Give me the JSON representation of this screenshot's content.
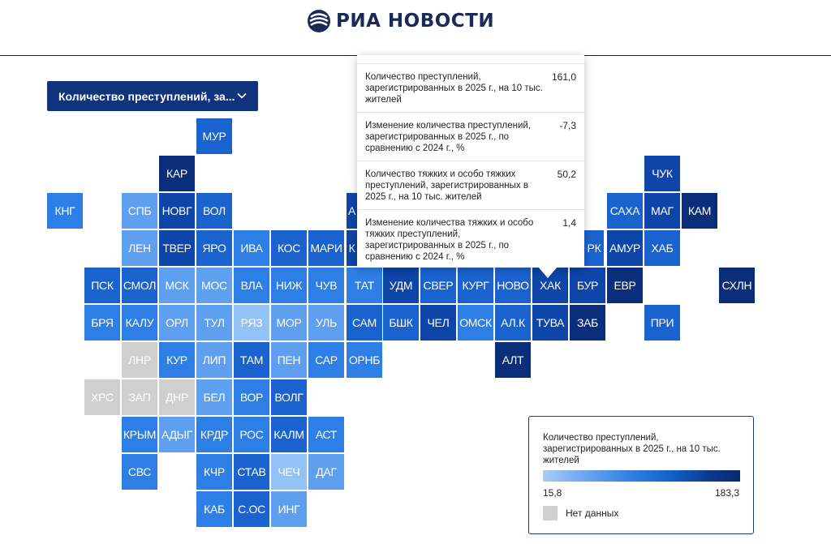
{
  "header": {
    "brand": "РИА НОВОСТИ",
    "logo": "ria-logo-icon"
  },
  "selector": {
    "label": "Количество преступлений, за...",
    "icon": "chevron-down-icon"
  },
  "tooltip": {
    "rows": [
      {
        "label": "Количество преступлений, зарегистрированных в 2025 г., на 10 тыс. жителей",
        "value": "161,0"
      },
      {
        "label": "Изменение количества преступлений, зарегистрированных в 2025 г., по сравнению с 2024 г., %",
        "value": "-7,3"
      },
      {
        "label": "Количество тяжких и особо тяжких преступлений, зарегистрированных в 2025 г., на 10 тыс. жителей",
        "value": "50,2"
      },
      {
        "label": "Изменение количества тяжких и особо тяжких преступлений, зарегистрированных в 2025 г., по сравнению с 2024 г., %",
        "value": "1,4"
      }
    ]
  },
  "legend": {
    "title": "Количество преступлений, зарегистрированных в 2025 г., на 10 тыс. жителей",
    "min": "15,8",
    "max": "183,3",
    "no_data": "Нет данных",
    "no_data_color": "#cfcfcf"
  },
  "colors": {
    "navy": "#0a2e7a",
    "dark": "#0e45a8",
    "mid": "#1a63cf",
    "bright": "#2d7fe6",
    "light": "#5e9ff0",
    "pale": "#93c2f7",
    "nodata": "#cfcfcf",
    "brand": "#11337d"
  },
  "map": {
    "selected": "ХАК",
    "tiles": [
      {
        "abbr": "МУР",
        "color": "#1a63cf"
      },
      {
        "abbr": "КАР",
        "color": "#0a2e7a"
      },
      {
        "abbr": "ЧУК",
        "color": "#0e45a8"
      },
      {
        "abbr": "КНГ",
        "color": "#2d7fe6"
      },
      {
        "abbr": "СПБ",
        "color": "#5e9ff0"
      },
      {
        "abbr": "НОВГ",
        "color": "#0e45a8"
      },
      {
        "abbr": "ВОЛ",
        "color": "#1a63cf"
      },
      {
        "abbr": "А",
        "color": "#0e45a8"
      },
      {
        "abbr": "САХА",
        "color": "#1a63cf"
      },
      {
        "abbr": "МАГ",
        "color": "#0e45a8"
      },
      {
        "abbr": "КАМ",
        "color": "#0a2e7a"
      },
      {
        "abbr": "ЛЕН",
        "color": "#5e9ff0"
      },
      {
        "abbr": "ТВЕР",
        "color": "#0e45a8"
      },
      {
        "abbr": "ЯРО",
        "color": "#1a63cf"
      },
      {
        "abbr": "ИВА",
        "color": "#2d7fe6"
      },
      {
        "abbr": "КОС",
        "color": "#1a63cf"
      },
      {
        "abbr": "МАРИ",
        "color": "#1a63cf"
      },
      {
        "abbr": "К",
        "color": "#0e45a8"
      },
      {
        "abbr": "РК",
        "color": "#1a63cf"
      },
      {
        "abbr": "АМУР",
        "color": "#0e45a8"
      },
      {
        "abbr": "ХАБ",
        "color": "#1a63cf"
      },
      {
        "abbr": "ПСК",
        "color": "#1a63cf"
      },
      {
        "abbr": "СМОЛ",
        "color": "#1a63cf"
      },
      {
        "abbr": "МСК",
        "color": "#5e9ff0"
      },
      {
        "abbr": "МОС",
        "color": "#5e9ff0"
      },
      {
        "abbr": "ВЛА",
        "color": "#2d7fe6"
      },
      {
        "abbr": "НИЖ",
        "color": "#2d7fe6"
      },
      {
        "abbr": "ЧУВ",
        "color": "#2d7fe6"
      },
      {
        "abbr": "ТАТ",
        "color": "#2d7fe6"
      },
      {
        "abbr": "УДМ",
        "color": "#0e45a8"
      },
      {
        "abbr": "СВЕР",
        "color": "#1a63cf"
      },
      {
        "abbr": "КУРГ",
        "color": "#1a63cf"
      },
      {
        "abbr": "НОВО",
        "color": "#1a63cf"
      },
      {
        "abbr": "ХАК",
        "color": "#0e45a8"
      },
      {
        "abbr": "БУР",
        "color": "#0e45a8"
      },
      {
        "abbr": "ЕВР",
        "color": "#0a2e7a"
      },
      {
        "abbr": "СХЛН",
        "color": "#0a2e7a"
      },
      {
        "abbr": "БРЯ",
        "color": "#2d7fe6"
      },
      {
        "abbr": "КАЛУ",
        "color": "#2d7fe6"
      },
      {
        "abbr": "ОРЛ",
        "color": "#5e9ff0"
      },
      {
        "abbr": "ТУЛ",
        "color": "#5e9ff0"
      },
      {
        "abbr": "РЯЗ",
        "color": "#93c2f7"
      },
      {
        "abbr": "МОР",
        "color": "#5e9ff0"
      },
      {
        "abbr": "УЛЬ",
        "color": "#5e9ff0"
      },
      {
        "abbr": "САМ",
        "color": "#1a63cf"
      },
      {
        "abbr": "БШК",
        "color": "#1a63cf"
      },
      {
        "abbr": "ЧЕЛ",
        "color": "#0e45a8"
      },
      {
        "abbr": "ОМСК",
        "color": "#2d7fe6"
      },
      {
        "abbr": "АЛ.К",
        "color": "#1a63cf"
      },
      {
        "abbr": "ТУВА",
        "color": "#0e45a8"
      },
      {
        "abbr": "ЗАБ",
        "color": "#0a2e7a"
      },
      {
        "abbr": "ПРИ",
        "color": "#1a63cf"
      },
      {
        "abbr": "ЛНР",
        "color": "#cfcfcf"
      },
      {
        "abbr": "КУР",
        "color": "#2d7fe6"
      },
      {
        "abbr": "ЛИП",
        "color": "#5e9ff0"
      },
      {
        "abbr": "ТАМ",
        "color": "#1a63cf"
      },
      {
        "abbr": "ПЕН",
        "color": "#5e9ff0"
      },
      {
        "abbr": "САР",
        "color": "#2d7fe6"
      },
      {
        "abbr": "ОРНБ",
        "color": "#2d7fe6"
      },
      {
        "abbr": "АЛТ",
        "color": "#0a2e7a"
      },
      {
        "abbr": "ХРС",
        "color": "#cfcfcf"
      },
      {
        "abbr": "ЗАП",
        "color": "#cfcfcf"
      },
      {
        "abbr": "ДНР",
        "color": "#cfcfcf"
      },
      {
        "abbr": "БЕЛ",
        "color": "#5e9ff0"
      },
      {
        "abbr": "ВОР",
        "color": "#2d7fe6"
      },
      {
        "abbr": "ВОЛГ",
        "color": "#1a63cf"
      },
      {
        "abbr": "КРЫМ",
        "color": "#2d7fe6"
      },
      {
        "abbr": "АДЫГ",
        "color": "#5e9ff0"
      },
      {
        "abbr": "КРДР",
        "color": "#2d7fe6"
      },
      {
        "abbr": "РОС",
        "color": "#2d7fe6"
      },
      {
        "abbr": "КАЛМ",
        "color": "#1a63cf"
      },
      {
        "abbr": "АСТ",
        "color": "#2d7fe6"
      },
      {
        "abbr": "СВС",
        "color": "#2d7fe6"
      },
      {
        "abbr": "КЧР",
        "color": "#2d7fe6"
      },
      {
        "abbr": "СТАВ",
        "color": "#1a63cf"
      },
      {
        "abbr": "ЧЕЧ",
        "color": "#93c2f7"
      },
      {
        "abbr": "ДАГ",
        "color": "#5e9ff0"
      },
      {
        "abbr": "КАБ",
        "color": "#2d7fe6"
      },
      {
        "abbr": "С.ОС",
        "color": "#1a63cf"
      },
      {
        "abbr": "ИНГ",
        "color": "#5e9ff0"
      }
    ]
  }
}
